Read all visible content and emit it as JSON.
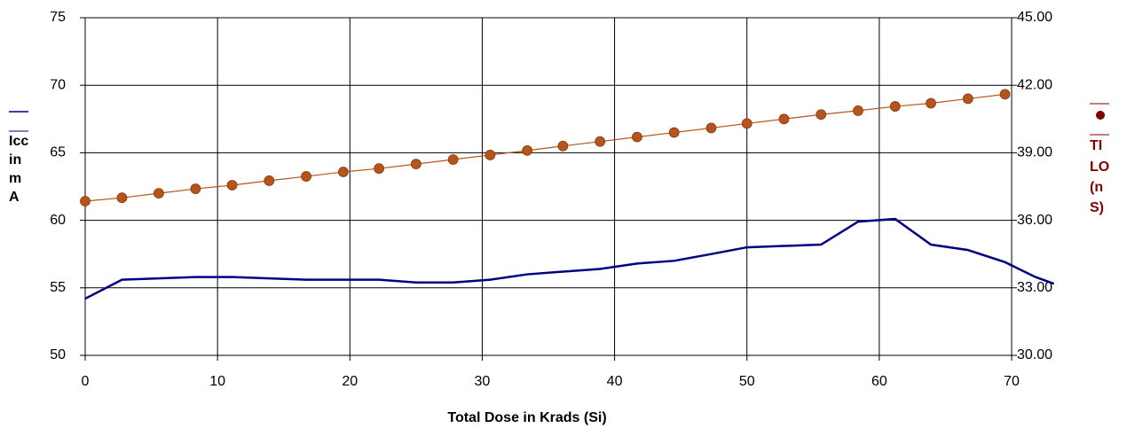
{
  "chart_data": {
    "type": "line",
    "x_label": "Total Dose in Krads (Si)",
    "y_label_lines": [
      "Icc",
      "in",
      "m",
      "A"
    ],
    "y2_label_lines": [
      "TI",
      "LO",
      "(n",
      "S)"
    ],
    "xlim": [
      0,
      70
    ],
    "xticks": [
      0,
      10,
      20,
      30,
      40,
      50,
      60,
      70
    ],
    "ylim": [
      50,
      75
    ],
    "yticks": [
      50,
      55,
      60,
      65,
      70,
      75
    ],
    "y2lim": [
      30,
      45
    ],
    "y2ticks": [
      {
        "value": 30,
        "label": "30.00"
      },
      {
        "value": 33,
        "label": "33.00"
      },
      {
        "value": 36,
        "label": "36.00"
      },
      {
        "value": 39,
        "label": "39.00"
      },
      {
        "value": 42,
        "label": "42.00"
      },
      {
        "value": 45,
        "label": "45.00"
      }
    ],
    "grid": true,
    "series": [
      {
        "color": "#000080",
        "marker": false,
        "x": [
          0,
          2.78,
          5.56,
          8.34,
          11.1,
          13.9,
          16.7,
          19.5,
          22.2,
          25,
          27.8,
          30.6,
          33.4,
          36.1,
          38.9,
          41.7,
          44.5,
          47.3,
          50,
          52.8,
          55.6,
          58.4,
          61.2,
          63.9,
          66.7,
          69.5,
          71.8,
          73.2
        ],
        "values": [
          54.2,
          55.6,
          55.7,
          55.8,
          55.8,
          55.7,
          55.6,
          55.6,
          55.6,
          55.4,
          55.4,
          55.6,
          56.0,
          56.2,
          56.4,
          56.8,
          57.0,
          57.5,
          58.0,
          58.1,
          58.2,
          59.9,
          60.1,
          58.2,
          57.8,
          56.9,
          55.8,
          55.3
        ]
      },
      {
        "color": "#b5541b",
        "marker": true,
        "axis": "y2",
        "x": [
          0,
          2.78,
          5.56,
          8.34,
          11.1,
          13.9,
          16.7,
          19.5,
          22.2,
          25,
          27.8,
          30.6,
          33.4,
          36.1,
          38.9,
          41.7,
          44.5,
          47.3,
          50,
          52.8,
          55.6,
          58.4,
          61.2,
          63.9,
          66.7,
          69.5
        ],
        "values": [
          36.85,
          37.0,
          37.2,
          37.4,
          37.56,
          37.76,
          37.95,
          38.15,
          38.3,
          38.5,
          38.7,
          38.9,
          39.1,
          39.3,
          39.5,
          39.7,
          39.9,
          40.1,
          40.3,
          40.5,
          40.7,
          40.87,
          41.06,
          41.2,
          41.4,
          41.6
        ]
      }
    ]
  }
}
